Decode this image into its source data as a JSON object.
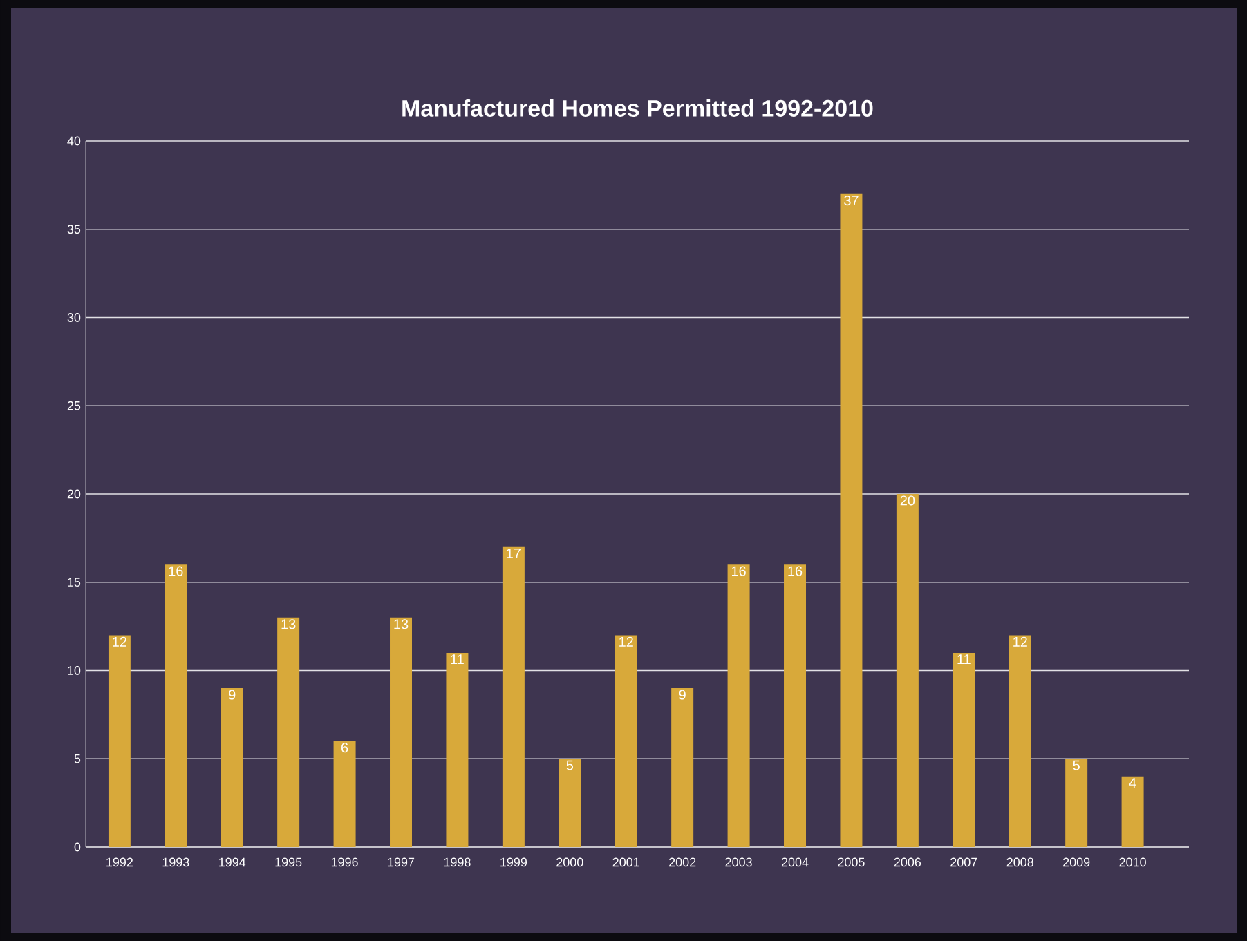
{
  "chart_data": {
    "type": "bar",
    "title": "Manufactured Homes Permitted      1992-2010",
    "categories": [
      "1992",
      "1993",
      "1994",
      "1995",
      "1996",
      "1997",
      "1998",
      "1999",
      "2000",
      "2001",
      "2002",
      "2003",
      "2004",
      "2005",
      "2006",
      "2007",
      "2008",
      "2009",
      "2010"
    ],
    "values": [
      12,
      16,
      9,
      13,
      6,
      13,
      11,
      17,
      5,
      12,
      9,
      16,
      16,
      37,
      20,
      11,
      12,
      5,
      4
    ],
    "color": "#d8a93a",
    "ylim": [
      0,
      40
    ],
    "yticks": [
      0,
      5,
      10,
      15,
      20,
      25,
      30,
      35,
      40
    ],
    "grid": "y",
    "data_labels": true
  }
}
